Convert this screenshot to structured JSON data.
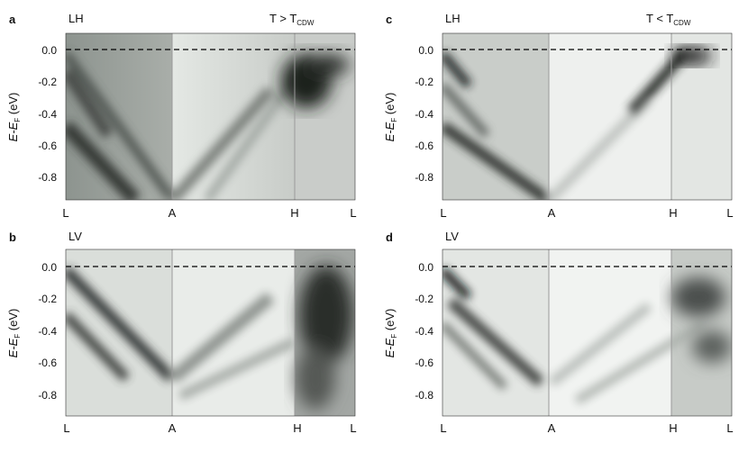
{
  "figure": {
    "panels": [
      {
        "id": "a",
        "letter": "a",
        "polarization": "LH",
        "condition": {
          "lhs": "T",
          "op": ">",
          "sub": "CDW",
          "text": "T > TCDW"
        },
        "kpoints": [
          "L",
          "A",
          "H",
          "L"
        ],
        "ylabel": {
          "main": "E-E",
          "sub": "F",
          "unit": "(eV)"
        },
        "yticks": [
          "0.0",
          "-0.2",
          "-0.4",
          "-0.6",
          "-0.8"
        ]
      },
      {
        "id": "c",
        "letter": "c",
        "polarization": "LH",
        "condition": {
          "lhs": "T",
          "op": "<",
          "sub": "CDW",
          "text": "T < TCDW"
        },
        "kpoints": [
          "L",
          "A",
          "H",
          "L"
        ],
        "ylabel": {
          "main": "E-E",
          "sub": "F",
          "unit": "(eV)"
        },
        "yticks": [
          "0.0",
          "-0.2",
          "-0.4",
          "-0.6",
          "-0.8"
        ]
      },
      {
        "id": "b",
        "letter": "b",
        "polarization": "LV",
        "condition": null,
        "kpoints": [
          "L",
          "A",
          "H",
          "L"
        ],
        "ylabel": {
          "main": "E-E",
          "sub": "F",
          "unit": "(eV)"
        },
        "yticks": [
          "0.0",
          "-0.2",
          "-0.4",
          "-0.6",
          "-0.8"
        ]
      },
      {
        "id": "d",
        "letter": "d",
        "polarization": "LV",
        "condition": null,
        "kpoints": [
          "L",
          "A",
          "H",
          "L"
        ],
        "ylabel": {
          "main": "E-E",
          "sub": "F",
          "unit": "(eV)"
        },
        "yticks": [
          "0.0",
          "-0.2",
          "-0.4",
          "-0.6",
          "-0.8"
        ]
      }
    ],
    "energy_axis": {
      "min": -0.95,
      "max": 0.1,
      "ticks": [
        0.0,
        -0.2,
        -0.4,
        -0.6,
        -0.8
      ],
      "fermi_level": 0.0
    },
    "colors": {
      "intensity_high": "#111111",
      "intensity_low": "#f2f3f2",
      "fermi_line": "#000000",
      "kpath_divider": "#9a9a9a"
    }
  }
}
